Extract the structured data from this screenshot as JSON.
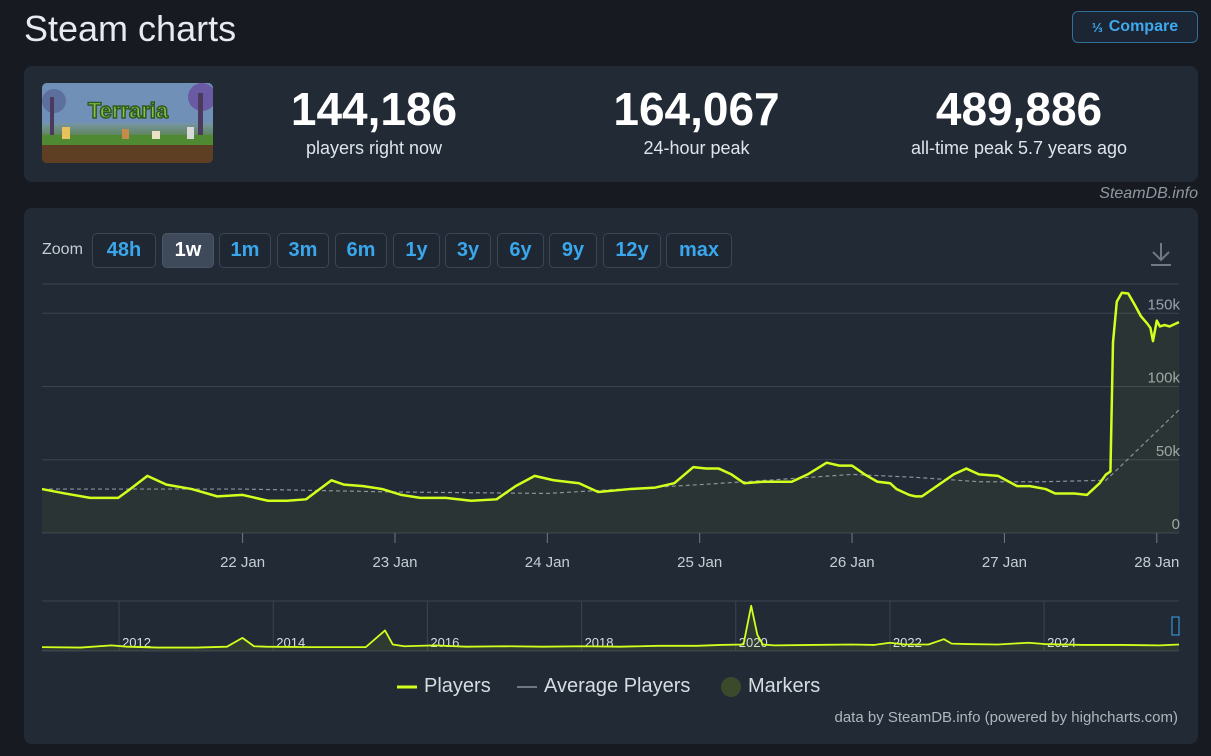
{
  "page": {
    "title": "Steam charts",
    "compare_label": "Compare",
    "compare_icon": "fraction-icon"
  },
  "game": {
    "name": "Terraria"
  },
  "stats": [
    {
      "value": "144,186",
      "label": "players right now"
    },
    {
      "value": "164,067",
      "label": "24-hour peak"
    },
    {
      "value": "489,886",
      "label": "all-time peak 5.7 years ago"
    }
  ],
  "credit": "SteamDB.info",
  "zoom": {
    "label": "Zoom",
    "options": [
      "48h",
      "1w",
      "1m",
      "3m",
      "6m",
      "1y",
      "3y",
      "6y",
      "9y",
      "12y",
      "max"
    ],
    "selected": "1w"
  },
  "legend": {
    "players": "Players",
    "average": "Average Players",
    "markers": "Markers"
  },
  "footer": "data by SteamDB.info (powered by highcharts.com)",
  "colors": {
    "players": "#d2ff1c",
    "average": "#8a929b",
    "markers": "#3c4a2c",
    "accent": "#3aa6ec"
  },
  "chart_data": [
    {
      "type": "line",
      "title": "",
      "x_unit": "hours since 21 Jan 00:00",
      "xlim": [
        -7.6,
        171.5
      ],
      "ylim": [
        0,
        170000
      ],
      "y_ticks": [
        {
          "v": 0,
          "label": "0"
        },
        {
          "v": 50000,
          "label": "50k"
        },
        {
          "v": 100000,
          "label": "100k"
        },
        {
          "v": 150000,
          "label": "150k"
        }
      ],
      "x_ticks": [
        {
          "v": 24,
          "label": "22 Jan"
        },
        {
          "v": 48,
          "label": "23 Jan"
        },
        {
          "v": 72,
          "label": "24 Jan"
        },
        {
          "v": 96,
          "label": "25 Jan"
        },
        {
          "v": 120,
          "label": "26 Jan"
        },
        {
          "v": 144,
          "label": "27 Jan"
        },
        {
          "v": 168,
          "label": "28 Jan"
        }
      ],
      "series": [
        {
          "name": "Players",
          "x": [
            -7.6,
            -4,
            0,
            2.6,
            4.4,
            6,
            9,
            12,
            16,
            20,
            24,
            26,
            28,
            31,
            34,
            38,
            40,
            43,
            46,
            49,
            52,
            56,
            60,
            64,
            67,
            70,
            73,
            77,
            80,
            85,
            89,
            92,
            95,
            97,
            99,
            101,
            103,
            106,
            108,
            110.5,
            113,
            116,
            118,
            120,
            122,
            124,
            126,
            127,
            128,
            129,
            130,
            131,
            132,
            136,
            138,
            140,
            143,
            146,
            148,
            150.5,
            152,
            155,
            157,
            159,
            160,
            160.7,
            161.1,
            161.7,
            162.5,
            163.5,
            164.5,
            165.5,
            166.5,
            167,
            167.4,
            168,
            168.5,
            169.2,
            170,
            171.5
          ],
          "y": [
            30000,
            27000,
            24000,
            24000,
            24000,
            29000,
            39000,
            33000,
            30000,
            25000,
            26000,
            24000,
            22000,
            22000,
            23000,
            36000,
            33000,
            32000,
            30000,
            26000,
            24000,
            24000,
            22000,
            23000,
            32000,
            39000,
            36000,
            34000,
            28000,
            30000,
            31000,
            34000,
            45000,
            44000,
            44000,
            40000,
            34000,
            35000,
            35000,
            35000,
            40000,
            48000,
            46000,
            46000,
            40000,
            35000,
            34000,
            30000,
            28000,
            26000,
            25000,
            25000,
            28000,
            40000,
            44000,
            40000,
            39000,
            32000,
            32000,
            30000,
            27000,
            27000,
            26000,
            34000,
            40000,
            42000,
            130000,
            158000,
            164000,
            163500,
            156000,
            148000,
            143000,
            140000,
            131000,
            145000,
            141000,
            142000,
            141000,
            144000
          ]
        },
        {
          "name": "Average Players",
          "x": [
            -7.6,
            0,
            24,
            48,
            72,
            96,
            110,
            120,
            130,
            140,
            150,
            160,
            171.5
          ],
          "y": [
            30000,
            30000,
            30000,
            28000,
            27000,
            33000,
            37000,
            40000,
            38000,
            35000,
            35000,
            36000,
            84000
          ]
        }
      ]
    },
    {
      "type": "area",
      "title": "",
      "xlim": [
        2011.0,
        2025.75
      ],
      "ylim": [
        0,
        500000
      ],
      "x_ticks": [
        {
          "v": 2012,
          "label": "2012"
        },
        {
          "v": 2014,
          "label": "2014"
        },
        {
          "v": 2016,
          "label": "2016"
        },
        {
          "v": 2018,
          "label": "2018"
        },
        {
          "v": 2020,
          "label": "2020"
        },
        {
          "v": 2022,
          "label": "2022"
        },
        {
          "v": 2024,
          "label": "2024"
        }
      ],
      "series": [
        {
          "name": "Players",
          "x": [
            2011.0,
            2011.5,
            2011.9,
            2012.1,
            2012.5,
            2013.0,
            2013.4,
            2013.6,
            2013.75,
            2013.9,
            2014.5,
            2015.2,
            2015.45,
            2015.55,
            2015.7,
            2016.1,
            2016.5,
            2017.0,
            2017.5,
            2018.0,
            2018.5,
            2019.0,
            2019.5,
            2019.8,
            2020.1,
            2020.2,
            2020.28,
            2020.35,
            2020.5,
            2021.0,
            2021.5,
            2021.8,
            2022.0,
            2022.2,
            2022.5,
            2022.7,
            2022.8,
            2023.0,
            2023.4,
            2023.8,
            2024.0,
            2024.5,
            2025.0,
            2025.5,
            2025.75
          ],
          "y": [
            10000,
            5000,
            30000,
            15000,
            5000,
            5000,
            15000,
            115000,
            20000,
            15000,
            10000,
            10000,
            200000,
            40000,
            20000,
            30000,
            15000,
            20000,
            15000,
            20000,
            15000,
            25000,
            25000,
            35000,
            40000,
            480000,
            150000,
            40000,
            30000,
            35000,
            40000,
            35000,
            60000,
            40000,
            40000,
            100000,
            50000,
            45000,
            40000,
            60000,
            45000,
            35000,
            35000,
            30000,
            40000
          ]
        }
      ]
    }
  ]
}
